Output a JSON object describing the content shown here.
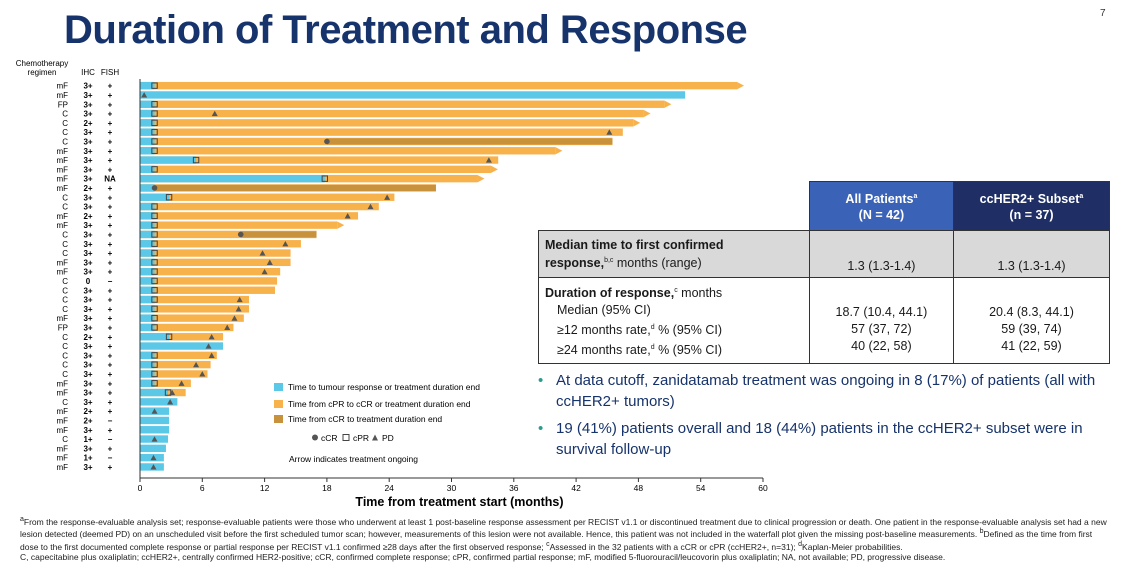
{
  "header": {
    "title": "Duration of Treatment and Response",
    "page_number": "7"
  },
  "colors": {
    "title": "#17336b",
    "cyan": "#5bc8e8",
    "orange": "#f8b24c",
    "dark_orange": "#c8913b",
    "header_blue": "#3a63b8",
    "header_navy": "#1f2f66",
    "bullet_dot": "#2a9d8f"
  },
  "chart_data": {
    "type": "swimmer",
    "xlabel": "Time from treatment start (months)",
    "xlim": [
      0,
      60
    ],
    "xticks": [
      0,
      6,
      12,
      18,
      24,
      30,
      36,
      42,
      48,
      54,
      60
    ],
    "column_headers": {
      "regimen": "Chemotherapy regimen",
      "regimen_line1": "Chemotherapy",
      "regimen_line2": "regimen",
      "ihc": "IHC",
      "fish": "FISH"
    },
    "legend": {
      "cyan": "Time to tumour response or treatment duration end",
      "orange": "Time from cPR to cCR or treatment duration end",
      "dark": "Time from cCR to treatment duration end",
      "marker_ccr": "cCR",
      "marker_cpr": "cPR",
      "marker_pd": "PD",
      "arrow_note": "Arrow indicates treatment ongoing"
    },
    "patients": [
      {
        "regimen": "mF",
        "ihc": "3+",
        "fish": "+",
        "cyan": 1.4,
        "orange_end": 57.5,
        "dark_start": null,
        "cpr": 1.4,
        "ccr": null,
        "pd": null,
        "ongoing": true
      },
      {
        "regimen": "mF",
        "ihc": "3+",
        "fish": "+",
        "cyan": 52.5,
        "orange_end": 52.5,
        "dark_start": null,
        "cpr": null,
        "ccr": null,
        "pd": 0.4,
        "ongoing": false
      },
      {
        "regimen": "FP",
        "ihc": "3+",
        "fish": "+",
        "cyan": 1.4,
        "orange_end": 50.5,
        "dark_start": null,
        "cpr": 1.4,
        "ccr": null,
        "pd": null,
        "ongoing": true
      },
      {
        "regimen": "C",
        "ihc": "3+",
        "fish": "+",
        "cyan": 1.4,
        "orange_end": 48.5,
        "dark_start": null,
        "cpr": 1.4,
        "ccr": null,
        "pd": 7.2,
        "ongoing": true
      },
      {
        "regimen": "C",
        "ihc": "2+",
        "fish": "+",
        "cyan": 1.4,
        "orange_end": 47.5,
        "dark_start": null,
        "cpr": 1.4,
        "ccr": null,
        "pd": null,
        "ongoing": true
      },
      {
        "regimen": "C",
        "ihc": "3+",
        "fish": "+",
        "cyan": 1.4,
        "orange_end": 46.5,
        "dark_start": null,
        "cpr": 1.4,
        "ccr": null,
        "pd": 45.2,
        "ongoing": false
      },
      {
        "regimen": "C",
        "ihc": "3+",
        "fish": "+",
        "cyan": 1.4,
        "orange_end": 45.5,
        "dark_start": 18.0,
        "cpr": 1.4,
        "ccr": 18.0,
        "pd": null,
        "ongoing": false
      },
      {
        "regimen": "mF",
        "ihc": "3+",
        "fish": "+",
        "cyan": 1.4,
        "orange_end": 40.0,
        "dark_start": null,
        "cpr": 1.4,
        "ccr": null,
        "pd": null,
        "ongoing": true
      },
      {
        "regimen": "mF",
        "ihc": "3+",
        "fish": "+",
        "cyan": 5.4,
        "orange_end": 34.5,
        "dark_start": null,
        "cpr": 5.4,
        "ccr": null,
        "pd": 33.6,
        "ongoing": false
      },
      {
        "regimen": "mF",
        "ihc": "3+",
        "fish": "+",
        "cyan": 1.4,
        "orange_end": 33.8,
        "dark_start": null,
        "cpr": 1.4,
        "ccr": null,
        "pd": null,
        "ongoing": true
      },
      {
        "regimen": "mF",
        "ihc": "3+",
        "fish": "NA",
        "cyan": 17.8,
        "orange_end": 32.5,
        "dark_start": null,
        "cpr": 17.8,
        "ccr": null,
        "pd": null,
        "ongoing": true
      },
      {
        "regimen": "mF",
        "ihc": "2+",
        "fish": "+",
        "cyan": 1.4,
        "orange_end": 28.5,
        "dark_start": 1.4,
        "cpr": null,
        "ccr": 1.4,
        "pd": null,
        "ongoing": false
      },
      {
        "regimen": "C",
        "ihc": "3+",
        "fish": "+",
        "cyan": 2.8,
        "orange_end": 24.5,
        "dark_start": null,
        "cpr": 2.8,
        "ccr": null,
        "pd": 23.8,
        "ongoing": false
      },
      {
        "regimen": "C",
        "ihc": "3+",
        "fish": "+",
        "cyan": 1.4,
        "orange_end": 23.0,
        "dark_start": null,
        "cpr": 1.4,
        "ccr": null,
        "pd": 22.2,
        "ongoing": false
      },
      {
        "regimen": "mF",
        "ihc": "2+",
        "fish": "+",
        "cyan": 1.4,
        "orange_end": 21.0,
        "dark_start": null,
        "cpr": 1.4,
        "ccr": null,
        "pd": 20.0,
        "ongoing": false
      },
      {
        "regimen": "mF",
        "ihc": "3+",
        "fish": "+",
        "cyan": 1.4,
        "orange_end": 19.0,
        "dark_start": null,
        "cpr": 1.4,
        "ccr": null,
        "pd": null,
        "ongoing": true
      },
      {
        "regimen": "C",
        "ihc": "3+",
        "fish": "+",
        "cyan": 1.4,
        "orange_end": 17.0,
        "dark_start": 9.7,
        "cpr": 1.4,
        "ccr": 9.7,
        "pd": null,
        "ongoing": false
      },
      {
        "regimen": "C",
        "ihc": "3+",
        "fish": "+",
        "cyan": 1.4,
        "orange_end": 15.5,
        "dark_start": null,
        "cpr": 1.4,
        "ccr": null,
        "pd": 14.0,
        "ongoing": false
      },
      {
        "regimen": "C",
        "ihc": "3+",
        "fish": "+",
        "cyan": 1.4,
        "orange_end": 14.5,
        "dark_start": null,
        "cpr": 1.4,
        "ccr": null,
        "pd": 11.8,
        "ongoing": false
      },
      {
        "regimen": "mF",
        "ihc": "3+",
        "fish": "+",
        "cyan": 1.4,
        "orange_end": 14.5,
        "dark_start": null,
        "cpr": 1.4,
        "ccr": null,
        "pd": 12.5,
        "ongoing": false
      },
      {
        "regimen": "mF",
        "ihc": "3+",
        "fish": "+",
        "cyan": 1.4,
        "orange_end": 13.5,
        "dark_start": null,
        "cpr": 1.4,
        "ccr": null,
        "pd": 12.0,
        "ongoing": false
      },
      {
        "regimen": "C",
        "ihc": "0",
        "fish": "−",
        "cyan": 1.4,
        "orange_end": 13.2,
        "dark_start": null,
        "cpr": 1.4,
        "ccr": null,
        "pd": null,
        "ongoing": false
      },
      {
        "regimen": "C",
        "ihc": "3+",
        "fish": "+",
        "cyan": 1.4,
        "orange_end": 13.0,
        "dark_start": null,
        "cpr": 1.4,
        "ccr": null,
        "pd": null,
        "ongoing": false
      },
      {
        "regimen": "C",
        "ihc": "3+",
        "fish": "+",
        "cyan": 1.4,
        "orange_end": 10.5,
        "dark_start": null,
        "cpr": 1.4,
        "ccr": null,
        "pd": 9.6,
        "ongoing": false
      },
      {
        "regimen": "C",
        "ihc": "3+",
        "fish": "+",
        "cyan": 1.4,
        "orange_end": 10.5,
        "dark_start": null,
        "cpr": 1.4,
        "ccr": null,
        "pd": 9.5,
        "ongoing": false
      },
      {
        "regimen": "mF",
        "ihc": "3+",
        "fish": "+",
        "cyan": 1.4,
        "orange_end": 10.0,
        "dark_start": null,
        "cpr": 1.4,
        "ccr": null,
        "pd": 9.1,
        "ongoing": false
      },
      {
        "regimen": "FP",
        "ihc": "3+",
        "fish": "+",
        "cyan": 1.4,
        "orange_end": 9.0,
        "dark_start": null,
        "cpr": 1.4,
        "ccr": null,
        "pd": 8.4,
        "ongoing": false
      },
      {
        "regimen": "C",
        "ihc": "2+",
        "fish": "+",
        "cyan": 2.8,
        "orange_end": 8.0,
        "dark_start": null,
        "cpr": 2.8,
        "ccr": null,
        "pd": 6.9,
        "ongoing": false
      },
      {
        "regimen": "C",
        "ihc": "3+",
        "fish": "+",
        "cyan": 8.0,
        "orange_end": 8.0,
        "dark_start": null,
        "cpr": null,
        "ccr": null,
        "pd": 6.6,
        "ongoing": false
      },
      {
        "regimen": "C",
        "ihc": "3+",
        "fish": "+",
        "cyan": 1.4,
        "orange_end": 7.4,
        "dark_start": null,
        "cpr": 1.4,
        "ccr": null,
        "pd": 6.9,
        "ongoing": false
      },
      {
        "regimen": "C",
        "ihc": "3+",
        "fish": "+",
        "cyan": 1.4,
        "orange_end": 6.8,
        "dark_start": null,
        "cpr": 1.4,
        "ccr": null,
        "pd": 5.4,
        "ongoing": false
      },
      {
        "regimen": "C",
        "ihc": "3+",
        "fish": "+",
        "cyan": 1.4,
        "orange_end": 6.5,
        "dark_start": null,
        "cpr": 1.4,
        "ccr": null,
        "pd": 6.0,
        "ongoing": false
      },
      {
        "regimen": "mF",
        "ihc": "3+",
        "fish": "+",
        "cyan": 1.4,
        "orange_end": 4.9,
        "dark_start": null,
        "cpr": 1.4,
        "ccr": null,
        "pd": 4.0,
        "ongoing": false
      },
      {
        "regimen": "mF",
        "ihc": "3+",
        "fish": "+",
        "cyan": 2.7,
        "orange_end": 4.4,
        "dark_start": null,
        "cpr": 2.7,
        "ccr": null,
        "pd": 3.1,
        "ongoing": false
      },
      {
        "regimen": "C",
        "ihc": "3+",
        "fish": "+",
        "cyan": 3.6,
        "orange_end": 3.6,
        "dark_start": null,
        "cpr": null,
        "ccr": null,
        "pd": 2.9,
        "ongoing": false
      },
      {
        "regimen": "mF",
        "ihc": "2+",
        "fish": "+",
        "cyan": 2.8,
        "orange_end": 2.8,
        "dark_start": null,
        "cpr": null,
        "ccr": null,
        "pd": 1.4,
        "ongoing": false
      },
      {
        "regimen": "mF",
        "ihc": "2+",
        "fish": "−",
        "cyan": 2.8,
        "orange_end": 2.8,
        "dark_start": null,
        "cpr": null,
        "ccr": null,
        "pd": null,
        "ongoing": false
      },
      {
        "regimen": "mF",
        "ihc": "3+",
        "fish": "+",
        "cyan": 2.8,
        "orange_end": 2.8,
        "dark_start": null,
        "cpr": null,
        "ccr": null,
        "pd": null,
        "ongoing": false
      },
      {
        "regimen": "C",
        "ihc": "1+",
        "fish": "−",
        "cyan": 2.7,
        "orange_end": 2.7,
        "dark_start": null,
        "cpr": null,
        "ccr": null,
        "pd": 1.4,
        "ongoing": false
      },
      {
        "regimen": "mF",
        "ihc": "3+",
        "fish": "+",
        "cyan": 2.5,
        "orange_end": 2.5,
        "dark_start": null,
        "cpr": null,
        "ccr": null,
        "pd": null,
        "ongoing": false
      },
      {
        "regimen": "mF",
        "ihc": "1+",
        "fish": "−",
        "cyan": 2.3,
        "orange_end": 2.3,
        "dark_start": null,
        "cpr": null,
        "ccr": null,
        "pd": 1.3,
        "ongoing": false
      },
      {
        "regimen": "mF",
        "ihc": "3+",
        "fish": "+",
        "cyan": 2.3,
        "orange_end": 2.3,
        "dark_start": null,
        "cpr": null,
        "ccr": null,
        "pd": 1.3,
        "ongoing": false
      }
    ]
  },
  "table": {
    "col_all": {
      "line1": "All Patients",
      "sup": "a",
      "line2": "(N = 42)"
    },
    "col_sub": {
      "line1": "ccHER2+ Subset",
      "sup": "a",
      "line2": "(n = 37)"
    },
    "median_ttr": {
      "label_bold1": "Median time to first confirmed",
      "label_bold2": "response,",
      "sup": "b,c",
      "label_rest": " months (range)",
      "all": "1.3 (1.3-1.4)",
      "sub": "1.3 (1.3-1.4)"
    },
    "dor": {
      "label_bold": "Duration of response,",
      "sup": "c",
      "label_rest": " months",
      "rows": [
        {
          "label": "Median (95% CI)",
          "all": "18.7 (10.4, 44.1)",
          "sub": "20.4 (8.3, 44.1)"
        },
        {
          "label_pre": "≥12 months rate,",
          "sup": "d",
          "label_post": " % (95% CI)",
          "all": "57 (37, 72)",
          "sub": "59 (39, 74)"
        },
        {
          "label_pre": "≥24 months rate,",
          "sup": "d",
          "label_post": " % (95% CI)",
          "all": "40 (22, 58)",
          "sub": "41 (22, 59)"
        }
      ]
    }
  },
  "bullets": [
    "At data cutoff, zanidatamab treatment was ongoing in 8 (17%) of patients (all with ccHER2+ tumors)",
    "19 (41%) patients overall and 18 (44%) patients in the ccHER2+ subset were in survival follow-up"
  ],
  "footnotes": {
    "line1": "From the response-evaluable analysis set; response-evaluable patients were those who underwent at least 1 post-baseline response assessment per RECIST v1.1 or discontinued treatment due to clinical progression or death. One patient in the response-evaluable analysis set had a new lesion detected (deemed PD) on an unscheduled visit before the first scheduled tumor scan; however, measurements of this lesion were not available. Hence, this patient was not included in the waterfall plot given the missing post-baseline measurements. ",
    "b": "Defined as the time from first dose to the first documented complete response or partial response per RECIST v1.1 confirmed ≥28 days after the first observed response; ",
    "c": "Assessed in the 32 patients with a cCR or cPR (ccHER2+, n=31); ",
    "d": "Kaplan-Meier probabilities.",
    "abbrev": "C, capecitabine plus oxaliplatin; ccHER2+, centrally confirmed HER2-positive; cCR, confirmed complete response; cPR, confirmed partial response; mF, modified 5-fluorouracil/leucovorin plus oxaliplatin; NA, not available; PD, progressive disease."
  }
}
